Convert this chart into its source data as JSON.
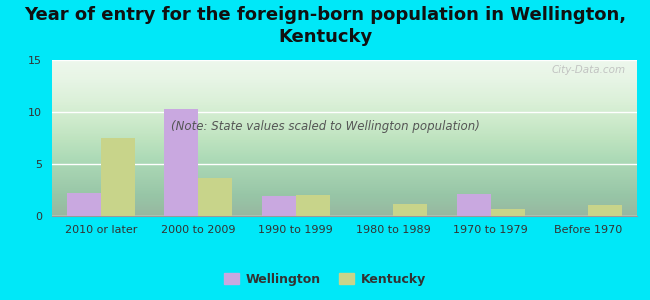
{
  "title": "Year of entry for the foreign-born population in Wellington,\nKentucky",
  "subtitle": "(Note: State values scaled to Wellington population)",
  "categories": [
    "2010 or later",
    "2000 to 2009",
    "1990 to 1999",
    "1980 to 1989",
    "1970 to 1979",
    "Before 1970"
  ],
  "wellington_values": [
    2.2,
    10.3,
    1.9,
    0,
    2.1,
    0
  ],
  "kentucky_values": [
    7.5,
    3.7,
    2.0,
    1.2,
    0.7,
    1.1
  ],
  "wellington_color": "#c9a8e0",
  "kentucky_color": "#c8d48a",
  "background_color": "#00e8f8",
  "ylim": [
    0,
    15
  ],
  "yticks": [
    0,
    5,
    10,
    15
  ],
  "bar_width": 0.35,
  "title_fontsize": 13,
  "subtitle_fontsize": 8.5,
  "tick_fontsize": 8,
  "legend_fontsize": 9,
  "watermark": "City-Data.com"
}
